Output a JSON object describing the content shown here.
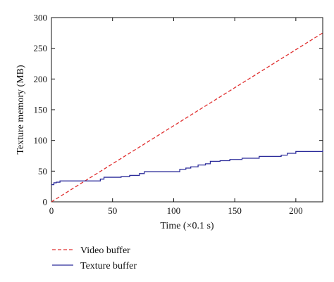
{
  "chart_data": {
    "type": "line",
    "xlabel": "Time (×0.1 s)",
    "ylabel": "Texture memory (MB)",
    "xlim": [
      0,
      222
    ],
    "ylim": [
      0,
      300
    ],
    "x_ticks": [
      0,
      50,
      100,
      150,
      200
    ],
    "y_ticks": [
      0,
      50,
      100,
      150,
      200,
      250,
      300
    ],
    "x_tick_labels": [
      "0",
      "50",
      "100",
      "150",
      "200"
    ],
    "y_tick_labels": [
      "0",
      "50",
      "100",
      "150",
      "200",
      "250",
      "300"
    ],
    "grid": false,
    "legend_position": "below-left",
    "series": [
      {
        "name": "Video buffer",
        "color": "#e03030",
        "dash": "dashed",
        "x": [
          0,
          222
        ],
        "y": [
          0,
          275
        ]
      },
      {
        "name": "Texture buffer",
        "color": "#2b2b9a",
        "dash": "solid",
        "step": true,
        "x": [
          0,
          2,
          4,
          7,
          38,
          40,
          43,
          57,
          64,
          72,
          76,
          100,
          105,
          110,
          114,
          120,
          126,
          130,
          138,
          146,
          156,
          170,
          188,
          193,
          200,
          222
        ],
        "y": [
          28,
          31,
          32,
          34,
          34,
          37,
          40,
          41,
          43,
          46,
          49,
          49,
          53,
          55,
          57,
          60,
          62,
          66,
          67,
          69,
          71,
          74,
          76,
          79,
          82,
          84
        ]
      }
    ]
  }
}
